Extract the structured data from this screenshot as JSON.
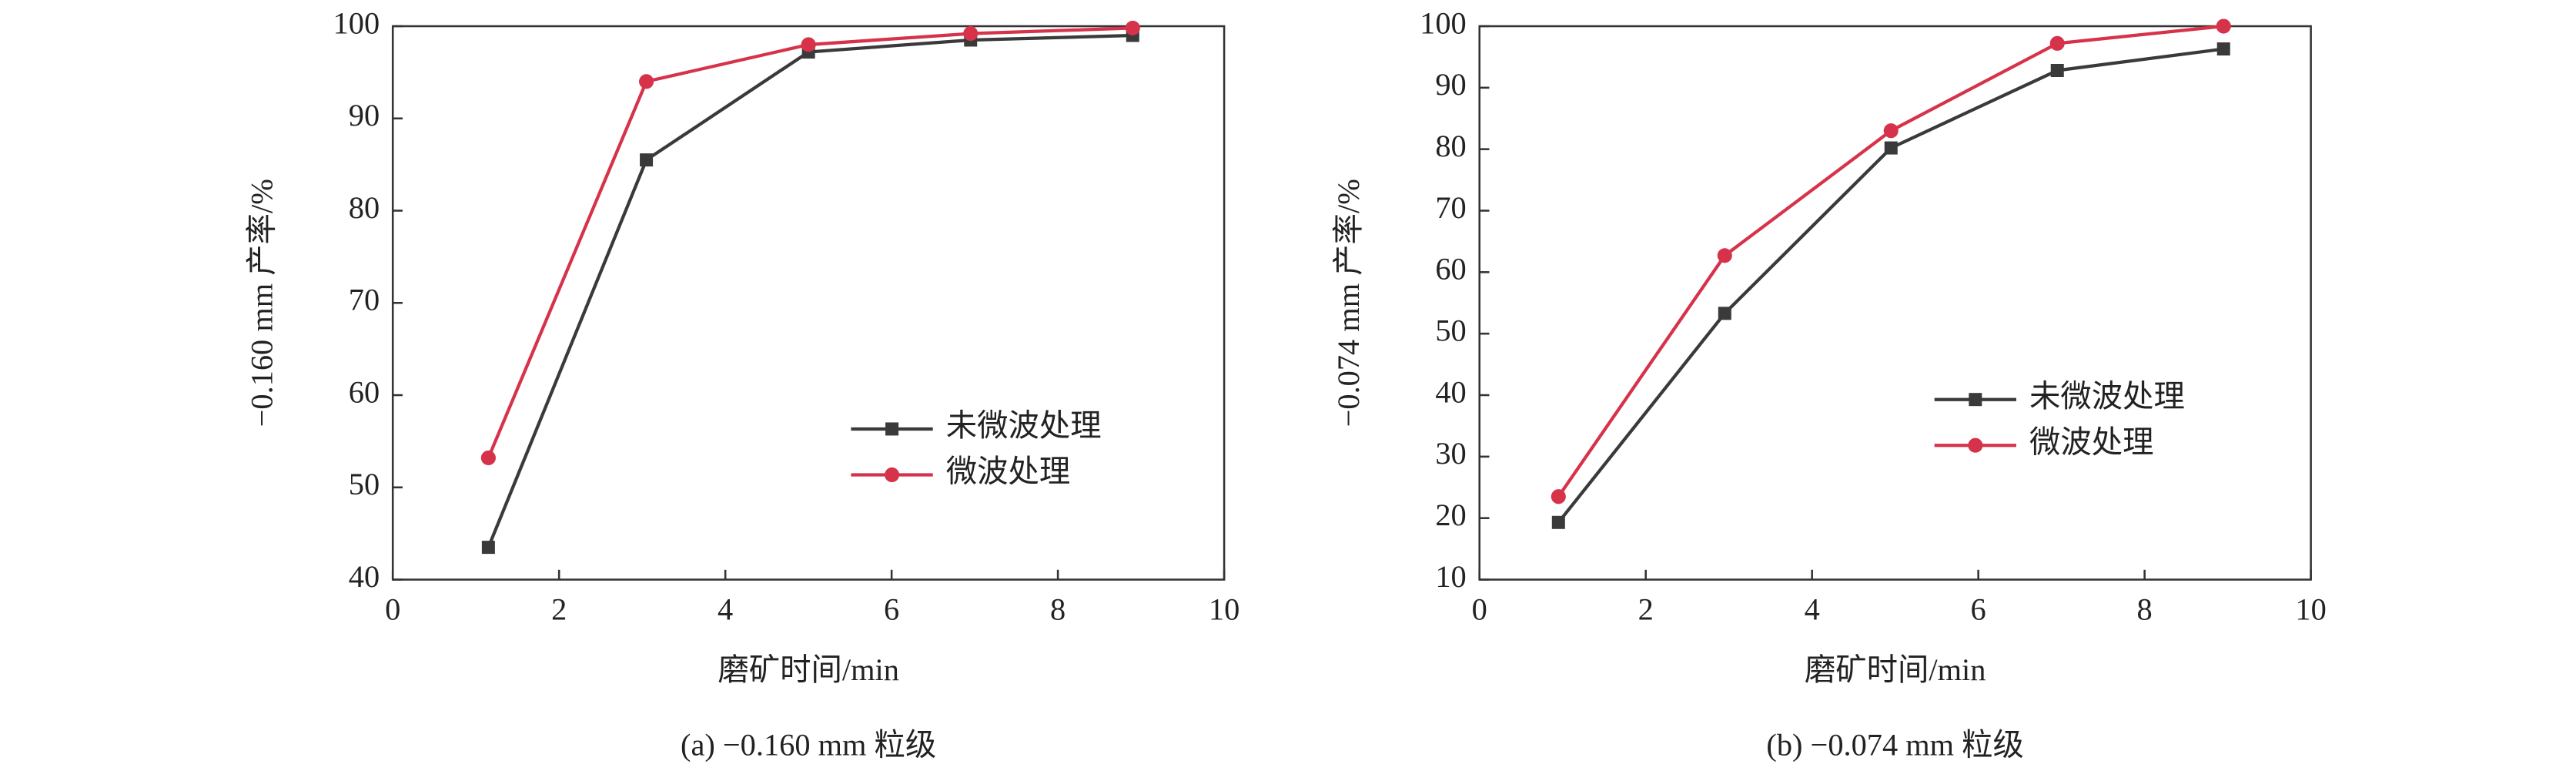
{
  "chart_data": [
    {
      "type": "line",
      "caption": "(a) −0.160 mm 粒级",
      "x_label": "磨矿时间/min",
      "y_label": "−0.160 mm 产率/%",
      "xlim": [
        0,
        10
      ],
      "xticks": [
        0,
        2,
        4,
        6,
        8,
        10
      ],
      "ylim": [
        40,
        100
      ],
      "yticks": [
        40,
        50,
        60,
        70,
        80,
        90,
        100
      ],
      "x": [
        1.15,
        3.05,
        5,
        6.95,
        8.9
      ],
      "series": [
        {
          "name": "未微波处理",
          "color": "#3a3a3a",
          "marker": "square",
          "values": [
            43.5,
            85.5,
            97.2,
            98.5,
            99.0
          ]
        },
        {
          "name": "微波处理",
          "color": "#d6334a",
          "marker": "circle",
          "values": [
            53.2,
            94.0,
            98.0,
            99.2,
            99.8
          ]
        }
      ]
    },
    {
      "type": "line",
      "caption": "(b) −0.074 mm 粒级",
      "x_label": "磨矿时间/min",
      "y_label": "−0.074 mm 产率/%",
      "xlim": [
        0,
        10
      ],
      "xticks": [
        0,
        2,
        4,
        6,
        8,
        10
      ],
      "ylim": [
        10,
        100
      ],
      "yticks": [
        10,
        20,
        30,
        40,
        50,
        60,
        70,
        80,
        90,
        100
      ],
      "x": [
        0.95,
        2.95,
        4.95,
        6.95,
        8.95
      ],
      "series": [
        {
          "name": "未微波处理",
          "color": "#3a3a3a",
          "marker": "square",
          "values": [
            19.3,
            53.3,
            80.2,
            92.8,
            96.3
          ]
        },
        {
          "name": "微波处理",
          "color": "#d6334a",
          "marker": "circle",
          "values": [
            23.5,
            62.7,
            83.0,
            97.2,
            100.0
          ]
        }
      ]
    }
  ]
}
